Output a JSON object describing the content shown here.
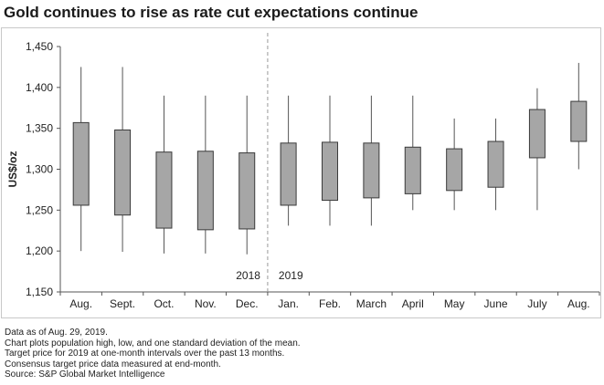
{
  "title": "Gold continues to rise as rate cut expectations continue",
  "notes": [
    "Data as of Aug. 29, 2019.",
    "Chart plots population high, low, and one standard deviation of the mean.",
    "Target price for 2019 at one-month intervals over the past 13 months.",
    "Consensus target price data measured at end-month.",
    "Source: S&P Global Market Intelligence"
  ],
  "chart_data": {
    "type": "boxplot",
    "ylabel": "US$/oz",
    "ylim": [
      1150,
      1450
    ],
    "yticks": [
      1150,
      1200,
      1250,
      1300,
      1350,
      1400,
      1450
    ],
    "ytick_labels": [
      "1,150",
      "1,200",
      "1,250",
      "1,300",
      "1,350",
      "1,400",
      "1,450"
    ],
    "categories": [
      "Aug.",
      "Sept.",
      "Oct.",
      "Nov.",
      "Dec.",
      "Jan.",
      "Feb.",
      "March",
      "April",
      "May",
      "June",
      "July",
      "Aug."
    ],
    "low": [
      1200,
      1199,
      1197,
      1197,
      1196,
      1231,
      1231,
      1231,
      1250,
      1250,
      1250,
      1250,
      1300
    ],
    "box_low": [
      1256,
      1244,
      1228,
      1226,
      1227,
      1256,
      1262,
      1265,
      1270,
      1274,
      1278,
      1314,
      1334
    ],
    "box_high": [
      1357,
      1348,
      1321,
      1322,
      1320,
      1332,
      1333,
      1332,
      1327,
      1325,
      1334,
      1373,
      1383
    ],
    "high": [
      1425,
      1425,
      1390,
      1390,
      1390,
      1390,
      1390,
      1390,
      1390,
      1362,
      1362,
      1399,
      1430
    ],
    "year_labels": [
      "2018",
      "2019"
    ],
    "divider_after_index": 4,
    "box_color": "#a6a6a6",
    "box_stroke": "#3a3a3a"
  }
}
